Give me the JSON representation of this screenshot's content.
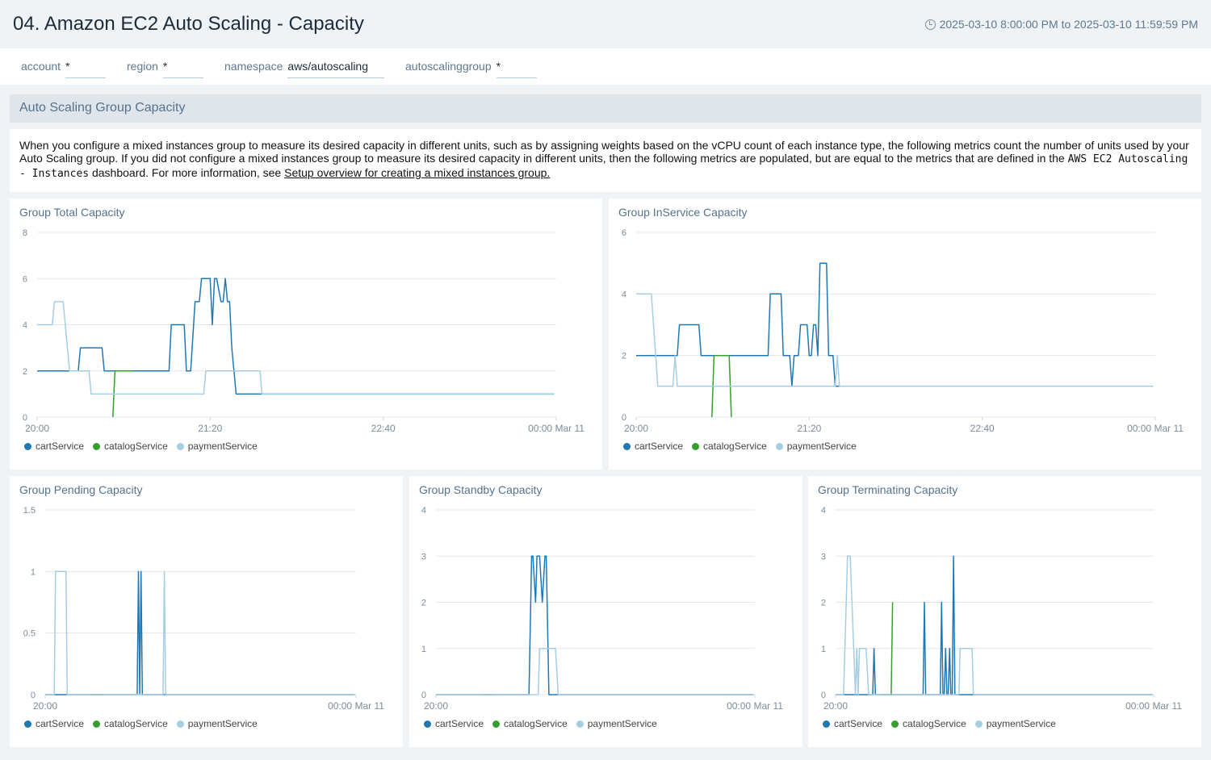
{
  "header": {
    "title": "04. Amazon EC2 Auto Scaling - Capacity",
    "time_icon": "clock-icon",
    "time_range": "2025-03-10 8:00:00 PM to 2025-03-10 11:59:59 PM"
  },
  "filters": [
    {
      "label": "account",
      "value": "*"
    },
    {
      "label": "region",
      "value": "*"
    },
    {
      "label": "namespace",
      "value": "aws/autoscaling"
    },
    {
      "label": "autoscalinggroup",
      "value": "*"
    }
  ],
  "section": {
    "title": "Auto Scaling Group Capacity"
  },
  "description": {
    "text1": "When you configure a mixed instances group to measure its desired capacity in different units, such as by assigning weights based on the vCPU count of each instance type, the following metrics count the number of units used by your Auto Scaling group. If you did not configure a mixed instances group to measure its desired capacity in different units, then the following metrics are populated, but are equal to the metrics that are defined in the ",
    "code": "AWS EC2 Autoscaling - Instances",
    "text2": " dashboard. For more information, see ",
    "link": "Setup overview for creating a mixed instances group."
  },
  "colors": {
    "cartService": "#1f78b4",
    "catalogService": "#33a02c",
    "paymentService": "#a6cee3"
  },
  "chart_data": [
    {
      "type": "line",
      "title": "Group Total Capacity",
      "ylim": [
        0,
        8
      ],
      "yticks": [
        0,
        2,
        4,
        6,
        8
      ],
      "grid": true,
      "legend": "bottom-left",
      "xticks": [
        {
          "label": "20:00",
          "at": "20:00"
        },
        {
          "label": "21:20",
          "at": "21:20"
        },
        {
          "label": "22:40",
          "at": "22:40"
        },
        {
          "label": "00:00 Mar 11",
          "at": "00:00"
        }
      ],
      "series": [
        {
          "name": "cartService",
          "points": [
            [
              "20:00",
              2
            ],
            [
              "20:19",
              2
            ],
            [
              "20:20",
              3
            ],
            [
              "20:30",
              3
            ],
            [
              "20:31",
              2
            ],
            [
              "21:01",
              2
            ],
            [
              "21:02",
              4
            ],
            [
              "21:08",
              4
            ],
            [
              "21:09",
              2
            ],
            [
              "21:11",
              2
            ],
            [
              "21:13",
              5
            ],
            [
              "21:15",
              5
            ],
            [
              "21:16",
              6
            ],
            [
              "21:20",
              6
            ],
            [
              "21:21",
              4
            ],
            [
              "21:22",
              6
            ],
            [
              "21:23",
              6
            ],
            [
              "21:25",
              5
            ],
            [
              "21:26",
              5
            ],
            [
              "21:27",
              6
            ],
            [
              "21:28",
              5
            ],
            [
              "21:29",
              5
            ],
            [
              "21:30",
              3
            ],
            [
              "21:32",
              1
            ],
            [
              "23:59",
              1
            ]
          ]
        },
        {
          "name": "catalogService",
          "points": [
            [
              "20:35",
              0
            ],
            [
              "20:36",
              2
            ],
            [
              "20:44",
              2
            ]
          ]
        },
        {
          "name": "paymentService",
          "points": [
            [
              "20:00",
              4
            ],
            [
              "20:07",
              4
            ],
            [
              "20:08",
              5
            ],
            [
              "20:12",
              5
            ],
            [
              "20:15",
              2
            ],
            [
              "20:24",
              2
            ],
            [
              "20:25",
              1
            ],
            [
              "21:17",
              1
            ],
            [
              "21:18",
              2
            ],
            [
              "21:43",
              2
            ],
            [
              "21:44",
              1
            ],
            [
              "23:59",
              1
            ]
          ]
        }
      ]
    },
    {
      "type": "line",
      "title": "Group InService Capacity",
      "ylim": [
        0,
        6
      ],
      "yticks": [
        0,
        2,
        4,
        6
      ],
      "grid": true,
      "legend": "bottom-left",
      "xticks": [
        {
          "label": "20:00",
          "at": "20:00"
        },
        {
          "label": "21:20",
          "at": "21:20"
        },
        {
          "label": "22:40",
          "at": "22:40"
        },
        {
          "label": "00:00 Mar 11",
          "at": "00:00"
        }
      ],
      "series": [
        {
          "name": "cartService",
          "points": [
            [
              "20:00",
              2
            ],
            [
              "20:19",
              2
            ],
            [
              "20:20",
              3
            ],
            [
              "20:29",
              3
            ],
            [
              "20:30",
              2
            ],
            [
              "21:01",
              2
            ],
            [
              "21:02",
              4
            ],
            [
              "21:07",
              4
            ],
            [
              "21:08",
              2
            ],
            [
              "21:11",
              2
            ],
            [
              "21:12",
              1
            ],
            [
              "21:13",
              2
            ],
            [
              "21:15",
              2
            ],
            [
              "21:16",
              3
            ],
            [
              "21:19",
              3
            ],
            [
              "21:20",
              2
            ],
            [
              "21:21",
              2
            ],
            [
              "21:22",
              3
            ],
            [
              "21:23",
              3
            ],
            [
              "21:24",
              2
            ],
            [
              "21:25",
              5
            ],
            [
              "21:28",
              5
            ],
            [
              "21:29",
              2
            ],
            [
              "21:31",
              2
            ],
            [
              "21:32",
              1
            ],
            [
              "23:59",
              1
            ]
          ]
        },
        {
          "name": "catalogService",
          "points": [
            [
              "20:35",
              0
            ],
            [
              "20:36",
              2
            ],
            [
              "20:43",
              2
            ],
            [
              "20:44",
              0
            ]
          ]
        },
        {
          "name": "paymentService",
          "points": [
            [
              "20:00",
              4
            ],
            [
              "20:07",
              4
            ],
            [
              "20:10",
              1
            ],
            [
              "20:17",
              1
            ],
            [
              "20:18",
              2
            ],
            [
              "20:19",
              1
            ],
            [
              "21:32",
              1
            ],
            [
              "21:33",
              2
            ],
            [
              "21:34",
              1
            ],
            [
              "23:59",
              1
            ]
          ]
        }
      ]
    },
    {
      "type": "line",
      "title": "Group Pending Capacity",
      "ylim": [
        0,
        1.5
      ],
      "yticks": [
        0,
        0.5,
        1,
        1.5
      ],
      "grid": true,
      "legend": "bottom-left",
      "xticks": [
        {
          "label": "20:00",
          "at": "20:00"
        },
        {
          "label": "00:00 Mar 11",
          "at": "00:00"
        }
      ],
      "series": [
        {
          "name": "cartService",
          "points": [
            [
              "20:00",
              0
            ],
            [
              "21:11",
              0
            ],
            [
              "21:12",
              1
            ],
            [
              "21:13",
              0
            ],
            [
              "21:14",
              1
            ],
            [
              "21:15",
              0
            ],
            [
              "23:59",
              0
            ]
          ]
        },
        {
          "name": "catalogService",
          "points": [
            [
              "20:35",
              0
            ],
            [
              "20:44",
              0
            ]
          ]
        },
        {
          "name": "paymentService",
          "points": [
            [
              "20:00",
              0
            ],
            [
              "20:07",
              0
            ],
            [
              "20:08",
              1
            ],
            [
              "20:16",
              1
            ],
            [
              "20:17",
              0
            ],
            [
              "21:31",
              0
            ],
            [
              "21:32",
              1
            ],
            [
              "21:33",
              0
            ],
            [
              "23:59",
              0
            ]
          ]
        }
      ]
    },
    {
      "type": "line",
      "title": "Group Standby Capacity",
      "ylim": [
        0,
        4
      ],
      "yticks": [
        0,
        1,
        2,
        3,
        4
      ],
      "grid": true,
      "legend": "bottom-left",
      "xticks": [
        {
          "label": "20:00",
          "at": "20:00"
        },
        {
          "label": "00:00 Mar 11",
          "at": "00:00"
        }
      ],
      "series": [
        {
          "name": "cartService",
          "points": [
            [
              "20:00",
              0
            ],
            [
              "21:10",
              0
            ],
            [
              "21:12",
              3
            ],
            [
              "21:13",
              3
            ],
            [
              "21:15",
              2
            ],
            [
              "21:16",
              3
            ],
            [
              "21:18",
              3
            ],
            [
              "21:20",
              2
            ],
            [
              "21:22",
              3
            ],
            [
              "21:23",
              3
            ],
            [
              "21:25",
              0
            ],
            [
              "23:59",
              0
            ]
          ]
        },
        {
          "name": "catalogService",
          "points": [
            [
              "20:35",
              0
            ],
            [
              "20:43",
              0
            ]
          ]
        },
        {
          "name": "paymentService",
          "points": [
            [
              "20:00",
              0
            ],
            [
              "21:17",
              0
            ],
            [
              "21:18",
              1
            ],
            [
              "21:30",
              1
            ],
            [
              "21:32",
              0
            ],
            [
              "23:59",
              0
            ]
          ]
        }
      ]
    },
    {
      "type": "line",
      "title": "Group Terminating Capacity",
      "ylim": [
        0,
        4
      ],
      "yticks": [
        0,
        1,
        2,
        3,
        4
      ],
      "grid": true,
      "legend": "bottom-left",
      "xticks": [
        {
          "label": "20:00",
          "at": "20:00"
        },
        {
          "label": "00:00 Mar 11",
          "at": "00:00"
        }
      ],
      "series": [
        {
          "name": "cartService",
          "points": [
            [
              "20:00",
              0
            ],
            [
              "20:28",
              0
            ],
            [
              "20:29",
              1
            ],
            [
              "20:30",
              0
            ],
            [
              "21:06",
              0
            ],
            [
              "21:07",
              2
            ],
            [
              "21:08",
              0
            ],
            [
              "21:19",
              0
            ],
            [
              "21:20",
              2
            ],
            [
              "21:21",
              0
            ],
            [
              "21:22",
              0
            ],
            [
              "21:23",
              1
            ],
            [
              "21:24",
              0
            ],
            [
              "21:25",
              0
            ],
            [
              "21:26",
              1
            ],
            [
              "21:27",
              0
            ],
            [
              "21:28",
              0
            ],
            [
              "21:29",
              3
            ],
            [
              "21:30",
              0
            ],
            [
              "23:59",
              0
            ]
          ]
        },
        {
          "name": "catalogService",
          "points": [
            [
              "20:35",
              0
            ],
            [
              "20:42",
              0
            ],
            [
              "20:43",
              2
            ]
          ]
        },
        {
          "name": "paymentService",
          "points": [
            [
              "20:00",
              0
            ],
            [
              "20:06",
              0
            ],
            [
              "20:09",
              3
            ],
            [
              "20:11",
              3
            ],
            [
              "20:15",
              0
            ],
            [
              "20:16",
              1
            ],
            [
              "20:17",
              0
            ],
            [
              "20:18",
              1
            ],
            [
              "20:23",
              1
            ],
            [
              "20:25",
              0
            ],
            [
              "21:33",
              0
            ],
            [
              "21:34",
              1
            ],
            [
              "21:43",
              1
            ],
            [
              "21:44",
              0
            ],
            [
              "23:59",
              0
            ]
          ]
        }
      ]
    }
  ]
}
